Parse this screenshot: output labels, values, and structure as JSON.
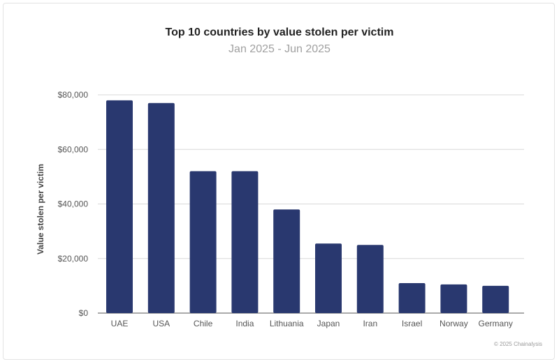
{
  "chart_data": {
    "type": "bar",
    "title": "Top 10 countries by value stolen per victim",
    "subtitle": "Jan 2025 - Jun 2025",
    "ylabel": "Value stolen per victim",
    "xlabel": "",
    "categories": [
      "UAE",
      "USA",
      "Chile",
      "India",
      "Lithuania",
      "Japan",
      "Iran",
      "Israel",
      "Norway",
      "Germany"
    ],
    "values": [
      78000,
      77000,
      52000,
      52000,
      38000,
      25500,
      25000,
      11000,
      10500,
      10000
    ],
    "ylim": [
      0,
      80000
    ],
    "yticks": [
      0,
      20000,
      40000,
      60000,
      80000
    ],
    "ytick_labels": [
      "$0",
      "$20,000",
      "$40,000",
      "$60,000",
      "$80,000"
    ],
    "grid": true,
    "bar_color": "#29386f"
  },
  "footer": "© 2025 Chainalysis"
}
